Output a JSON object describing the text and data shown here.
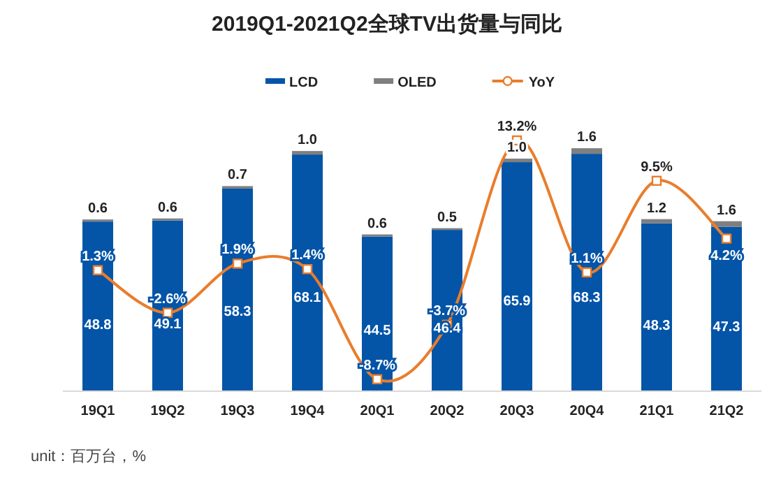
{
  "chart_data": {
    "type": "bar",
    "title": "2019Q1-2021Q2全球TV出货量与同比",
    "categories": [
      "19Q1",
      "19Q2",
      "19Q3",
      "19Q4",
      "20Q1",
      "20Q2",
      "20Q3",
      "20Q4",
      "21Q1",
      "21Q2"
    ],
    "stacked": true,
    "data_labels": true,
    "legend": "top",
    "tick_labels": "x",
    "series": [
      {
        "name": "LCD",
        "color": "#0455a8",
        "values": [
          48.8,
          49.1,
          58.3,
          68.1,
          44.5,
          46.4,
          65.9,
          68.3,
          48.3,
          47.3
        ],
        "value_labels": [
          "48.8",
          "49.1",
          "58.3",
          "68.1",
          "44.5",
          "46.4",
          "65.9",
          "68.3",
          "48.3",
          "47.3"
        ]
      },
      {
        "name": "OLED",
        "color": "#7f7f7f",
        "values": [
          0.6,
          0.6,
          0.7,
          1.0,
          0.6,
          0.5,
          1.0,
          1.6,
          1.2,
          1.6
        ],
        "value_labels": [
          "0.6",
          "0.6",
          "0.7",
          "1.0",
          "0.6",
          "0.5",
          "1.0",
          "1.6",
          "1.2",
          "1.6"
        ]
      },
      {
        "name": "YoY",
        "type": "line",
        "axis": "y2",
        "color": "#e97d2c",
        "marker": "square",
        "values": [
          1.3,
          -2.6,
          1.9,
          1.4,
          -8.7,
          -3.7,
          13.2,
          1.1,
          9.5,
          4.2
        ],
        "value_labels": [
          "1.3%",
          "-2.6%",
          "1.9%",
          "1.4%",
          "-8.7%",
          "-3.7%",
          "13.2%",
          "1.1%",
          "9.5%",
          "4.2%"
        ]
      }
    ],
    "annotations": [
      "unit：百万台，%"
    ]
  }
}
